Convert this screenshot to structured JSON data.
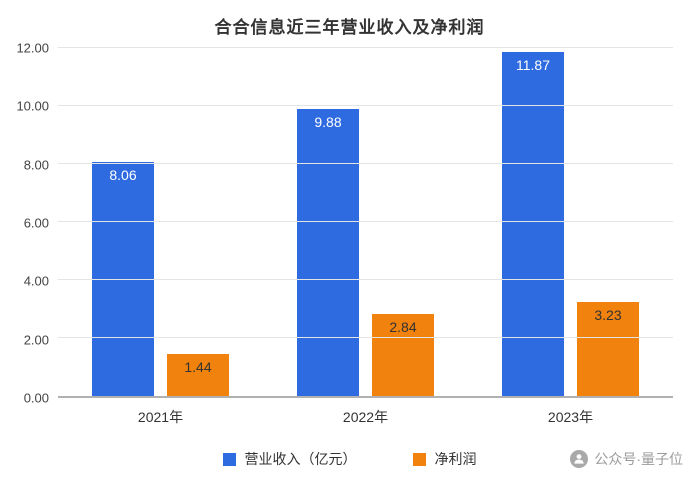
{
  "chart_data": {
    "type": "bar",
    "title": "合合信息近三年营业收入及净利润",
    "categories": [
      "2021年",
      "2022年",
      "2023年"
    ],
    "series": [
      {
        "key": "revenue",
        "name": "营业收入（亿元）",
        "color": "#2E6BE0",
        "label_color": "#ffffff",
        "values": [
          8.06,
          9.88,
          11.87
        ]
      },
      {
        "key": "net-profit",
        "name": "净利润",
        "color": "#F0820D",
        "label_color": "#333333",
        "values": [
          1.44,
          2.84,
          3.23
        ]
      }
    ],
    "ylim": [
      0,
      12
    ],
    "yticks": [
      "0.00",
      "2.00",
      "4.00",
      "6.00",
      "8.00",
      "10.00",
      "12.00"
    ],
    "grid": true,
    "legend_position": "bottom"
  },
  "watermark": {
    "text": "公众号·量子位",
    "icon": "wechat-official-account-icon"
  },
  "colors": {
    "baseline": "#b0b0b0",
    "gridline": "#e4e4e4",
    "axis_text": "#444444",
    "watermark_text": "#9b9b9b"
  }
}
